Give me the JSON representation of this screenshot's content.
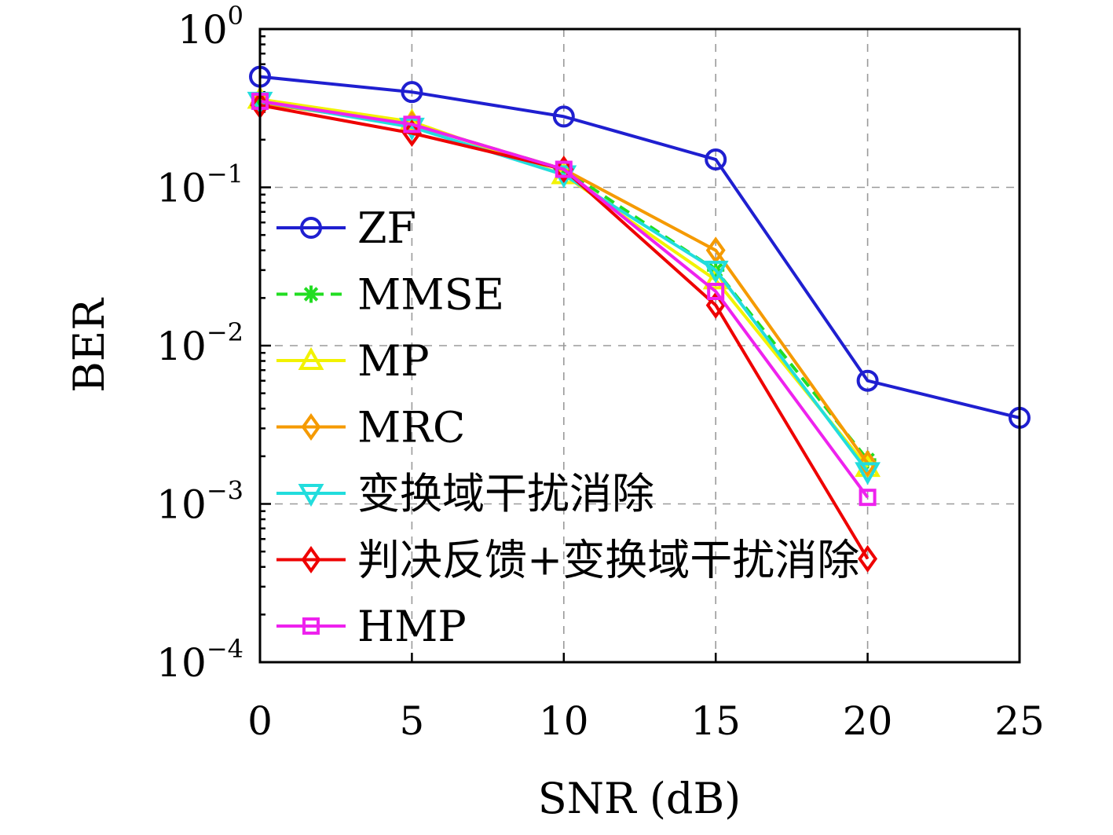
{
  "chart_data": {
    "type": "line",
    "title": "",
    "xlabel": "SNR (dB)",
    "ylabel": "BER",
    "xlim": [
      0,
      25
    ],
    "ylim": [
      0.0001,
      1
    ],
    "yscale": "log",
    "grid": true,
    "legend_position": "left",
    "x_ticks": [
      "0",
      "5",
      "10",
      "15",
      "20",
      "25"
    ],
    "y_ticks": [
      {
        "base": "10",
        "exp": "0"
      },
      {
        "base": "10",
        "exp": "−1"
      },
      {
        "base": "10",
        "exp": "−2"
      },
      {
        "base": "10",
        "exp": "−3"
      },
      {
        "base": "10",
        "exp": "−4"
      }
    ],
    "series": [
      {
        "name": "ZF",
        "color": "#1f1fd0",
        "marker": "circle",
        "dash": false,
        "x": [
          0,
          5,
          10,
          15,
          20,
          25
        ],
        "y": [
          0.5,
          0.4,
          0.28,
          0.15,
          0.006,
          0.0035
        ]
      },
      {
        "name": "MMSE",
        "color": "#22dd22",
        "marker": "star",
        "dash": true,
        "x": [
          0,
          5,
          10,
          15,
          20
        ],
        "y": [
          0.35,
          0.25,
          0.13,
          0.03,
          0.0019
        ]
      },
      {
        "name": "MP",
        "color": "#f2f200",
        "marker": "triangle-up",
        "dash": false,
        "x": [
          0,
          5,
          10,
          15,
          20
        ],
        "y": [
          0.36,
          0.26,
          0.12,
          0.026,
          0.0017
        ]
      },
      {
        "name": "MRC",
        "color": "#f59a00",
        "marker": "diamond",
        "dash": false,
        "x": [
          0,
          5,
          10,
          15,
          20
        ],
        "y": [
          0.34,
          0.25,
          0.13,
          0.04,
          0.0018
        ]
      },
      {
        "name": "变换域干扰消除",
        "color": "#22dddd",
        "marker": "triangle-down",
        "dash": false,
        "x": [
          0,
          5,
          10,
          15,
          20
        ],
        "y": [
          0.35,
          0.24,
          0.12,
          0.03,
          0.0016
        ]
      },
      {
        "name": "判决反馈+变换域干扰消除",
        "color": "#ee0000",
        "marker": "diamond",
        "dash": false,
        "x": [
          0,
          5,
          10,
          15,
          20
        ],
        "y": [
          0.33,
          0.22,
          0.13,
          0.018,
          0.00045
        ]
      },
      {
        "name": "HMP",
        "color": "#ee22ee",
        "marker": "square",
        "dash": false,
        "x": [
          0,
          5,
          10,
          15,
          20
        ],
        "y": [
          0.35,
          0.25,
          0.13,
          0.022,
          0.0011
        ]
      }
    ]
  }
}
